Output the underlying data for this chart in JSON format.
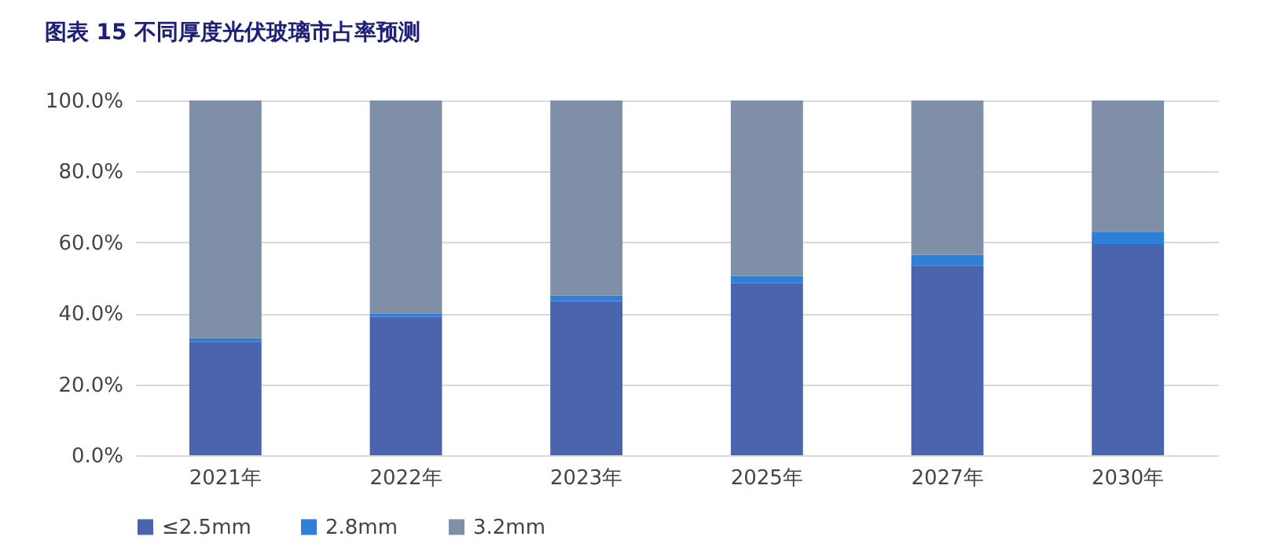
{
  "chart_data": {
    "type": "bar",
    "stacked": true,
    "title": "图表 15 不同厚度光伏玻璃市占率预测",
    "categories": [
      "2021年",
      "2022年",
      "2023年",
      "2025年",
      "2027年",
      "2030年"
    ],
    "series": [
      {
        "name": "≤2.5mm",
        "color": "#4a65ad",
        "values": [
          32,
          39,
          43.5,
          48.5,
          53.5,
          59.5
        ]
      },
      {
        "name": "2.8mm",
        "color": "#2e7fd8",
        "values": [
          1,
          1,
          1.5,
          2,
          3,
          3.5
        ]
      },
      {
        "name": "3.2mm",
        "color": "#7f8fa8",
        "values": [
          67,
          60,
          55,
          49.5,
          43.5,
          37
        ]
      }
    ],
    "ylim": [
      0,
      100
    ],
    "yticks": [
      {
        "value": 0,
        "label": "0.0%"
      },
      {
        "value": 20,
        "label": "20.0%"
      },
      {
        "value": 40,
        "label": "40.0%"
      },
      {
        "value": 60,
        "label": "60.0%"
      },
      {
        "value": 80,
        "label": "80.0%"
      },
      {
        "value": 100,
        "label": "100.0%"
      }
    ],
    "grid": "y",
    "legend": "bottom"
  }
}
